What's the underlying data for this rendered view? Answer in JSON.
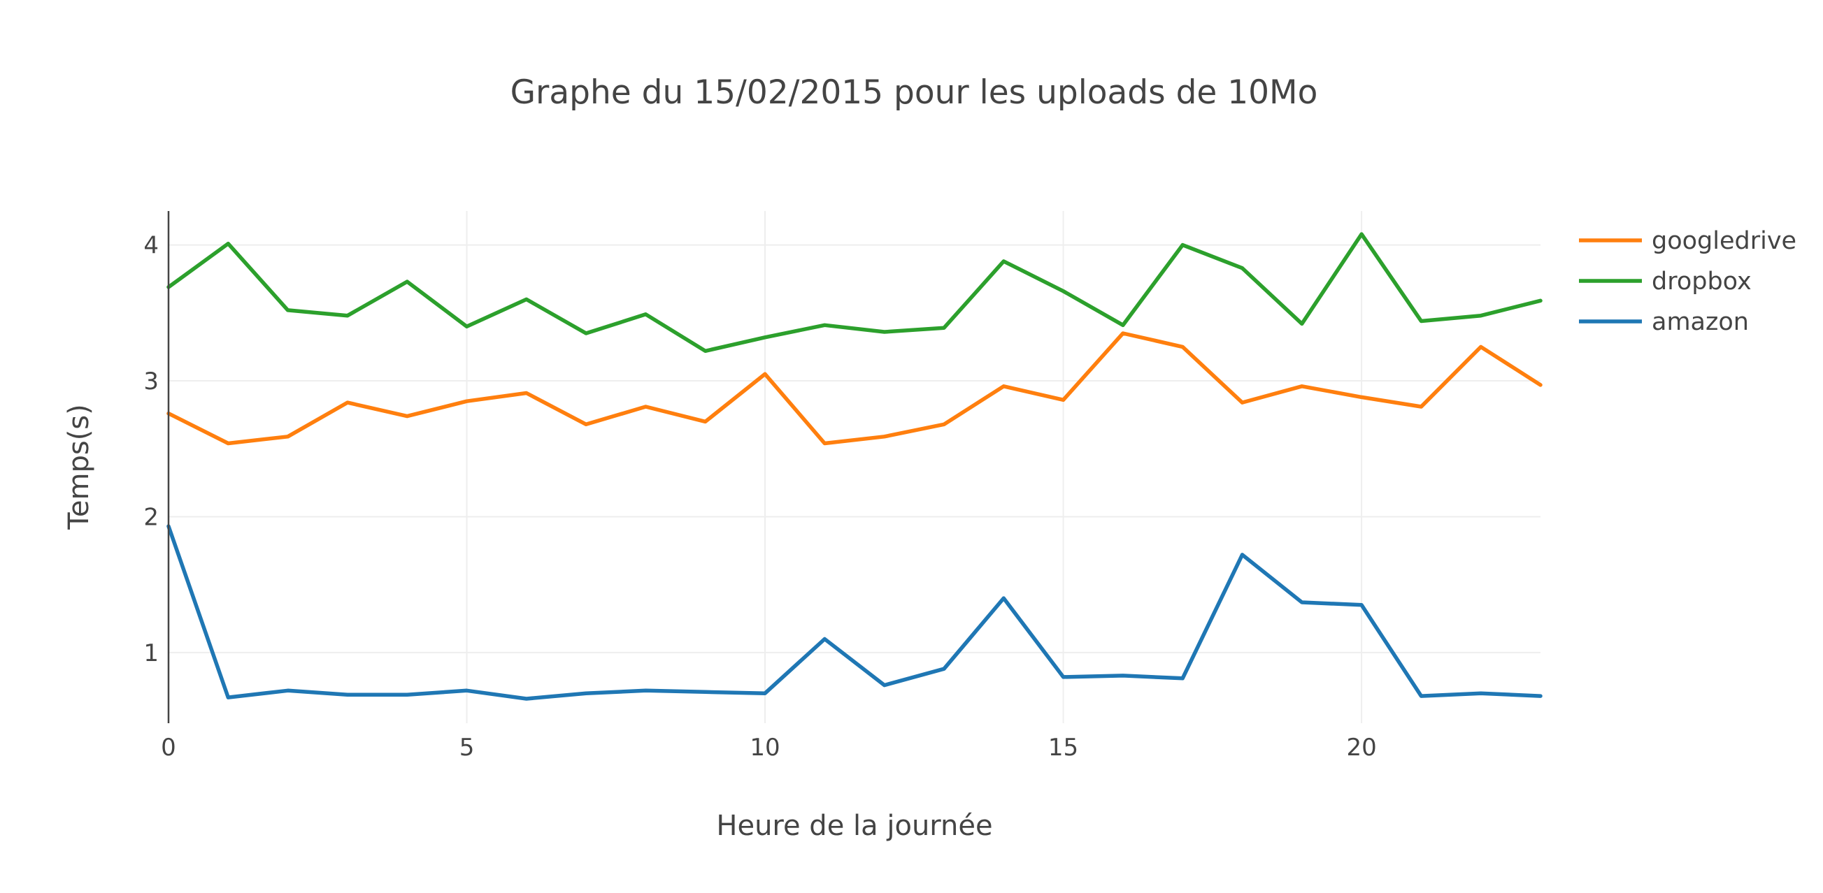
{
  "chart_data": {
    "type": "line",
    "title": "Graphe du 15/02/2015 pour les uploads de 10Mo",
    "xlabel": "Heure de la journée",
    "ylabel": "Temps(s)",
    "x": [
      0,
      1,
      2,
      3,
      4,
      5,
      6,
      7,
      8,
      9,
      10,
      11,
      12,
      13,
      14,
      15,
      16,
      17,
      18,
      19,
      20,
      21,
      22,
      23
    ],
    "xlim": [
      0,
      23
    ],
    "ylim": [
      0.48,
      4.25
    ],
    "xticks": [
      0,
      5,
      10,
      15,
      20
    ],
    "yticks": [
      1,
      2,
      3,
      4
    ],
    "grid": true,
    "legend_position": "top-right",
    "series": [
      {
        "name": "googledrive",
        "color": "#ff7f0e",
        "values": [
          2.76,
          2.54,
          2.59,
          2.84,
          2.74,
          2.85,
          2.91,
          2.68,
          2.81,
          2.7,
          3.05,
          2.54,
          2.59,
          2.68,
          2.96,
          2.86,
          3.35,
          3.25,
          2.84,
          2.96,
          2.88,
          2.81,
          3.25,
          2.97
        ]
      },
      {
        "name": "dropbox",
        "color": "#2ca02c",
        "values": [
          3.69,
          4.01,
          3.52,
          3.48,
          3.73,
          3.4,
          3.6,
          3.35,
          3.49,
          3.22,
          3.32,
          3.41,
          3.36,
          3.39,
          3.88,
          3.66,
          3.41,
          4.0,
          3.83,
          3.42,
          4.08,
          3.44,
          3.48,
          3.59
        ]
      },
      {
        "name": "amazon",
        "color": "#1f77b4",
        "values": [
          1.93,
          0.67,
          0.72,
          0.69,
          0.69,
          0.72,
          0.66,
          0.7,
          0.72,
          0.71,
          0.7,
          1.1,
          0.76,
          0.88,
          1.4,
          0.82,
          0.83,
          0.81,
          1.72,
          1.37,
          1.35,
          0.68,
          0.7,
          0.68
        ]
      }
    ]
  }
}
